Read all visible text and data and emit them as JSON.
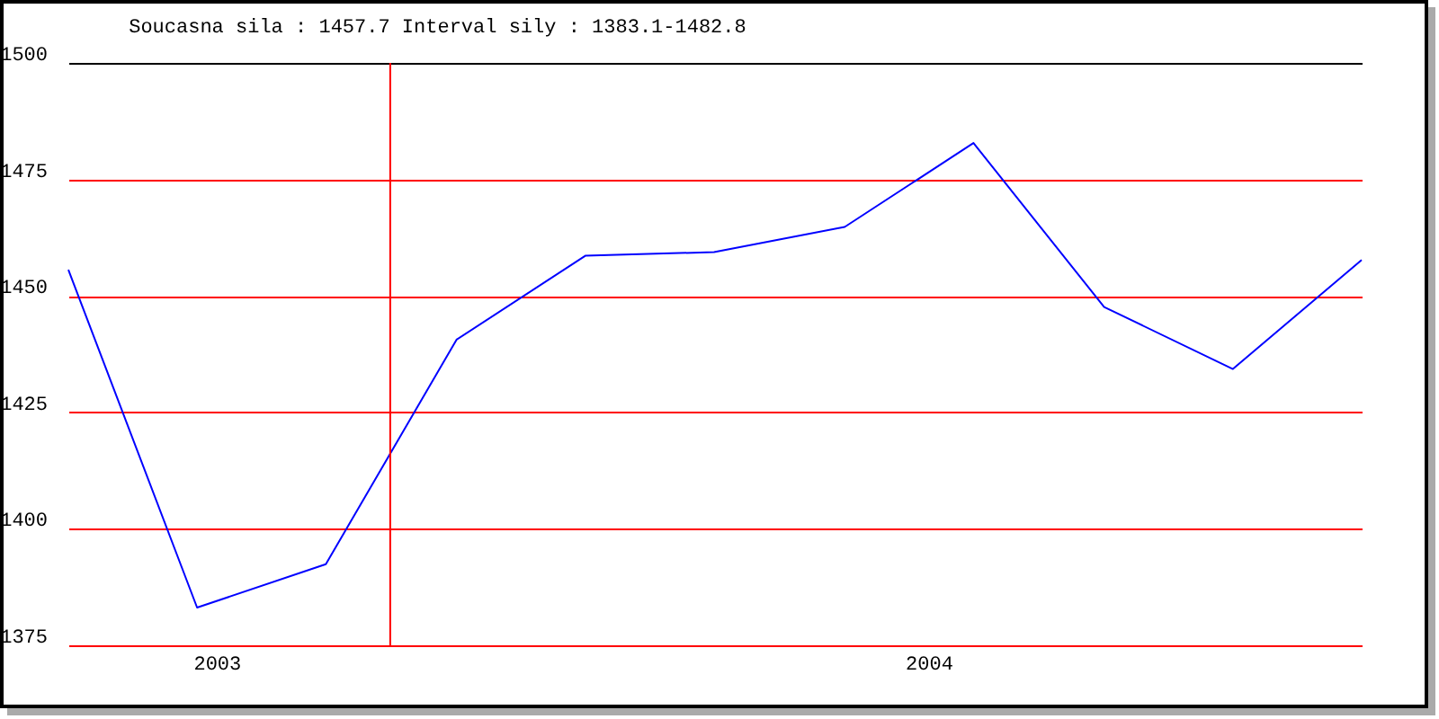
{
  "chart_data": {
    "type": "line",
    "title": "Soucasna sila : 1457.7  Interval sily : 1383.1-1482.8",
    "x": [
      "2002-10-17",
      "2002-12-22",
      "2003-02-26",
      "2003-05-04",
      "2003-07-09",
      "2003-09-13",
      "2003-11-19",
      "2004-01-24",
      "2004-03-31",
      "2004-06-05",
      "2004-08-10"
    ],
    "series": [
      {
        "color": "#0000ff",
        "values": [
          1455.6,
          1383.1,
          1392.4,
          1440.6,
          1458.6,
          1459.4,
          1464.8,
          1482.8,
          1447.6,
          1434.3,
          1457.7
        ]
      }
    ],
    "xlim": [
      "2002-10-17",
      "2004-08-10"
    ],
    "xticks": [
      "2003",
      "2004"
    ],
    "ylim": [
      1375,
      1500
    ],
    "yticks": [
      1375,
      1400,
      1425,
      1450,
      1475,
      1500
    ],
    "grid": "y",
    "marker": "none",
    "line_style": "solid",
    "ref_lines": [
      {
        "axis": "x",
        "value": "2003-03-31",
        "color": "#ff0000"
      }
    ]
  }
}
